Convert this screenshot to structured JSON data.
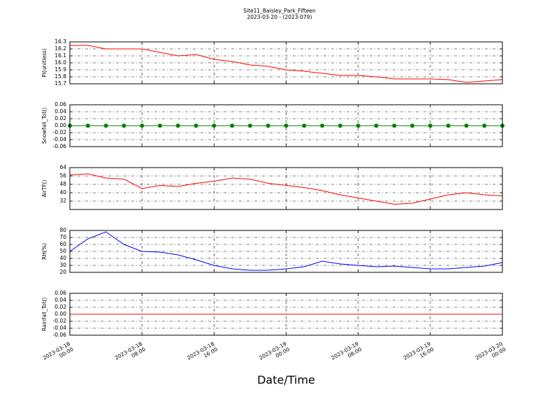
{
  "chart_data": [
    {
      "type": "line",
      "title": "Site11_Baisley_Park_Fifteen",
      "subtitle": "2023-03-20 - (2023-079)",
      "ylabel": "PI(unitless)",
      "x": [
        "2023-03-18 00:00",
        "2023-03-18 02:00",
        "2023-03-18 04:00",
        "2023-03-18 06:00",
        "2023-03-18 08:00",
        "2023-03-18 10:00",
        "2023-03-18 12:00",
        "2023-03-18 14:00",
        "2023-03-18 16:00",
        "2023-03-18 18:00",
        "2023-03-18 20:00",
        "2023-03-18 22:00",
        "2023-03-19 00:00",
        "2023-03-19 02:00",
        "2023-03-19 04:00",
        "2023-03-19 06:00",
        "2023-03-19 08:00",
        "2023-03-19 10:00",
        "2023-03-19 12:00",
        "2023-03-19 14:00",
        "2023-03-19 16:00",
        "2023-03-19 18:00",
        "2023-03-19 20:00",
        "2023-03-19 22:00",
        "2023-03-20 00:00"
      ],
      "values": [
        16.25,
        16.25,
        16.2,
        16.2,
        16.2,
        16.15,
        16.1,
        16.12,
        16.05,
        16.02,
        15.97,
        15.95,
        15.9,
        15.88,
        15.85,
        15.82,
        15.82,
        15.8,
        15.77,
        15.77,
        15.77,
        15.76,
        15.72,
        15.74,
        15.76
      ],
      "color": "#ff0000",
      "markers": false,
      "xtick_labels": false,
      "xlim": [
        "2023-03-18 00:00",
        "2023-03-20 00:00"
      ],
      "xticks": [
        "2023-03-18 00:00",
        "2023-03-18 08:00",
        "2023-03-18 16:00",
        "2023-03-19 00:00",
        "2023-03-19 08:00",
        "2023-03-19 16:00",
        "2023-03-20 00:00"
      ],
      "ylim": [
        15.7,
        16.3
      ],
      "yticks": [
        15.7,
        15.8,
        15.9,
        {
          "value": 16,
          "label": "16.0"
        },
        16.1,
        16.2,
        16.3
      ],
      "grid": true
    },
    {
      "type": "line",
      "ylabel": "Snowfall_Tot()",
      "x": [
        "2023-03-18 00:00",
        "2023-03-18 02:00",
        "2023-03-18 04:00",
        "2023-03-18 06:00",
        "2023-03-18 08:00",
        "2023-03-18 10:00",
        "2023-03-18 12:00",
        "2023-03-18 14:00",
        "2023-03-18 16:00",
        "2023-03-18 18:00",
        "2023-03-18 20:00",
        "2023-03-18 22:00",
        "2023-03-19 00:00",
        "2023-03-19 02:00",
        "2023-03-19 04:00",
        "2023-03-19 06:00",
        "2023-03-19 08:00",
        "2023-03-19 10:00",
        "2023-03-19 12:00",
        "2023-03-19 14:00",
        "2023-03-19 16:00",
        "2023-03-19 18:00",
        "2023-03-19 20:00",
        "2023-03-19 22:00",
        "2023-03-20 00:00"
      ],
      "values": [
        0,
        0,
        0,
        0,
        0,
        0,
        0,
        0,
        0,
        0,
        0,
        0,
        0,
        0,
        0,
        0,
        0,
        0,
        0,
        0,
        0,
        0,
        0,
        0,
        0
      ],
      "color": "#008000",
      "markers": true,
      "xtick_labels": false,
      "xlim": [
        "2023-03-18 00:00",
        "2023-03-20 00:00"
      ],
      "xticks": [
        "2023-03-18 00:00",
        "2023-03-18 08:00",
        "2023-03-18 16:00",
        "2023-03-19 00:00",
        "2023-03-19 08:00",
        "2023-03-19 16:00",
        "2023-03-20 00:00"
      ],
      "ylim": [
        -0.06,
        0.06
      ],
      "yticks": [
        -0.06,
        -0.04,
        -0.02,
        {
          "value": 0,
          "label": "0.00"
        },
        0.02,
        0.04,
        0.06
      ],
      "grid": true
    },
    {
      "type": "line",
      "ylabel": "AirTF()",
      "x": [
        "2023-03-18 00:00",
        "2023-03-18 02:00",
        "2023-03-18 04:00",
        "2023-03-18 06:00",
        "2023-03-18 08:00",
        "2023-03-18 10:00",
        "2023-03-18 12:00",
        "2023-03-18 14:00",
        "2023-03-18 16:00",
        "2023-03-18 18:00",
        "2023-03-18 20:00",
        "2023-03-18 22:00",
        "2023-03-19 00:00",
        "2023-03-19 02:00",
        "2023-03-19 04:00",
        "2023-03-19 06:00",
        "2023-03-19 08:00",
        "2023-03-19 10:00",
        "2023-03-19 12:00",
        "2023-03-19 14:00",
        "2023-03-19 16:00",
        "2023-03-19 18:00",
        "2023-03-19 20:00",
        "2023-03-19 22:00",
        "2023-03-20 00:00"
      ],
      "values": [
        57,
        58,
        54,
        53,
        44,
        47,
        46,
        49,
        51,
        54,
        53,
        49,
        47,
        45,
        42,
        38,
        35,
        32,
        29,
        30,
        34,
        38,
        40,
        38,
        37
      ],
      "color": "#ff0000",
      "markers": false,
      "xtick_labels": false,
      "xlim": [
        "2023-03-18 00:00",
        "2023-03-20 00:00"
      ],
      "xticks": [
        "2023-03-18 00:00",
        "2023-03-18 08:00",
        "2023-03-18 16:00",
        "2023-03-19 00:00",
        "2023-03-19 08:00",
        "2023-03-19 16:00",
        "2023-03-20 00:00"
      ],
      "ylim": [
        24,
        64
      ],
      "yticks": [
        32,
        40,
        48,
        56,
        64
      ],
      "grid": true
    },
    {
      "type": "line",
      "ylabel": "RH(%)",
      "x": [
        "2023-03-18 00:00",
        "2023-03-18 02:00",
        "2023-03-18 04:00",
        "2023-03-18 06:00",
        "2023-03-18 08:00",
        "2023-03-18 10:00",
        "2023-03-18 12:00",
        "2023-03-18 14:00",
        "2023-03-18 16:00",
        "2023-03-18 18:00",
        "2023-03-18 20:00",
        "2023-03-18 22:00",
        "2023-03-19 00:00",
        "2023-03-19 02:00",
        "2023-03-19 04:00",
        "2023-03-19 06:00",
        "2023-03-19 08:00",
        "2023-03-19 10:00",
        "2023-03-19 12:00",
        "2023-03-19 14:00",
        "2023-03-19 16:00",
        "2023-03-19 18:00",
        "2023-03-19 20:00",
        "2023-03-19 22:00",
        "2023-03-20 00:00"
      ],
      "values": [
        50,
        68,
        78,
        60,
        50,
        49,
        45,
        38,
        30,
        25,
        23,
        23,
        25,
        28,
        36,
        32,
        30,
        28,
        29,
        27,
        25,
        25,
        27,
        29,
        34
      ],
      "color": "#0000ff",
      "markers": false,
      "xtick_labels": false,
      "xlim": [
        "2023-03-18 00:00",
        "2023-03-20 00:00"
      ],
      "xticks": [
        "2023-03-18 00:00",
        "2023-03-18 08:00",
        "2023-03-18 16:00",
        "2023-03-19 00:00",
        "2023-03-19 08:00",
        "2023-03-19 16:00",
        "2023-03-20 00:00"
      ],
      "ylim": [
        20,
        80
      ],
      "yticks": [
        20,
        30,
        40,
        50,
        60,
        70,
        80
      ],
      "grid": true
    },
    {
      "type": "line",
      "ylabel": "Rainfall_Tot()",
      "xlabel": "Date/Time",
      "x": [
        "2023-03-18 00:00",
        "2023-03-18 02:00",
        "2023-03-18 04:00",
        "2023-03-18 06:00",
        "2023-03-18 08:00",
        "2023-03-18 10:00",
        "2023-03-18 12:00",
        "2023-03-18 14:00",
        "2023-03-18 16:00",
        "2023-03-18 18:00",
        "2023-03-18 20:00",
        "2023-03-18 22:00",
        "2023-03-19 00:00",
        "2023-03-19 02:00",
        "2023-03-19 04:00",
        "2023-03-19 06:00",
        "2023-03-19 08:00",
        "2023-03-19 10:00",
        "2023-03-19 12:00",
        "2023-03-19 14:00",
        "2023-03-19 16:00",
        "2023-03-19 18:00",
        "2023-03-19 20:00",
        "2023-03-19 22:00",
        "2023-03-20 00:00"
      ],
      "values": [
        0,
        0,
        0,
        0,
        0,
        0,
        0,
        0,
        0,
        0,
        0,
        0,
        0,
        0,
        0,
        0,
        0,
        0,
        0,
        0,
        0,
        0,
        0,
        0,
        0
      ],
      "color": "#ff0000",
      "markers": false,
      "xtick_labels": true,
      "xlim": [
        "2023-03-18 00:00",
        "2023-03-20 00:00"
      ],
      "xticks": [
        "2023-03-18 00:00",
        "2023-03-18 08:00",
        "2023-03-18 16:00",
        "2023-03-19 00:00",
        "2023-03-19 08:00",
        "2023-03-19 16:00",
        "2023-03-20 00:00"
      ],
      "ylim": [
        -0.06,
        0.06
      ],
      "yticks": [
        -0.06,
        -0.04,
        -0.02,
        {
          "value": 0,
          "label": "0.00"
        },
        0.02,
        0.04,
        0.06
      ],
      "grid": true
    }
  ]
}
